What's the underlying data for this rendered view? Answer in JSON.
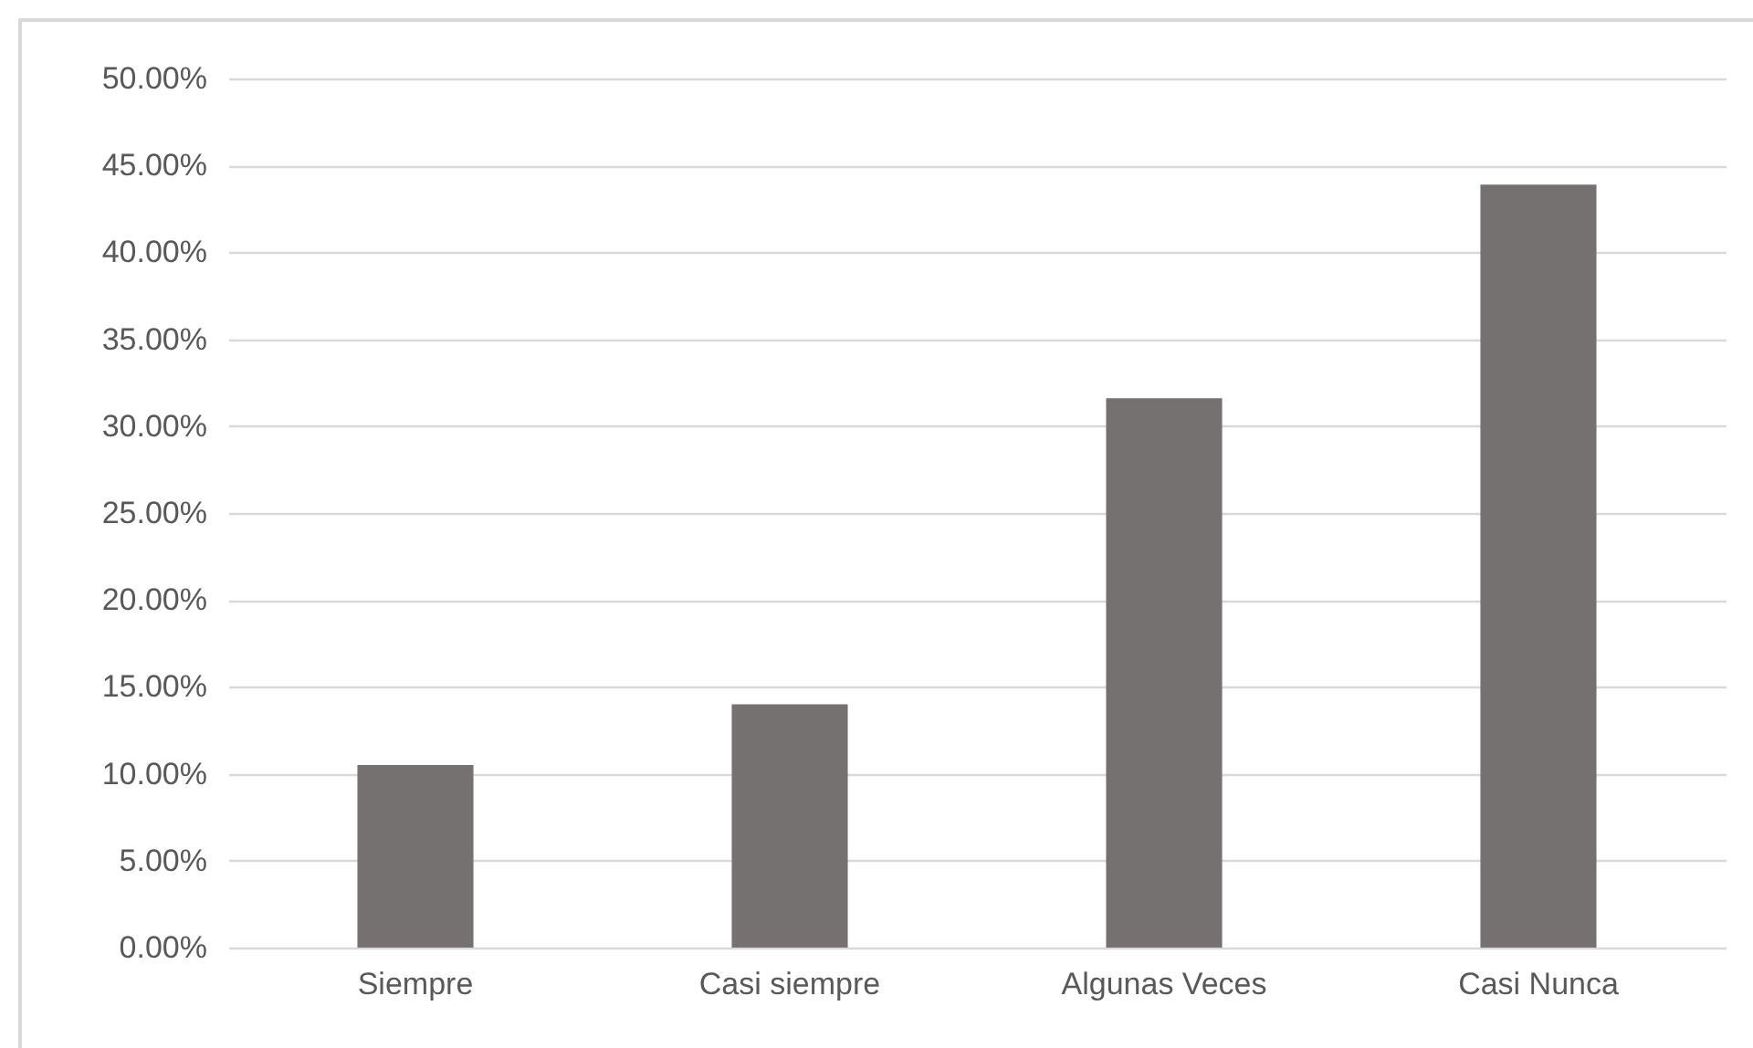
{
  "chart_data": {
    "type": "bar",
    "categories": [
      "Siempre",
      "Casi siempre",
      "Algunas Veces",
      "Casi Nunca"
    ],
    "values": [
      10.5,
      14.0,
      31.6,
      43.9
    ],
    "color": "#767171",
    "ylim": [
      0,
      50
    ],
    "yticks": [
      {
        "value": 0,
        "label": "0.00%"
      },
      {
        "value": 5,
        "label": "5.00%"
      },
      {
        "value": 10,
        "label": "10.00%"
      },
      {
        "value": 15,
        "label": "15.00%"
      },
      {
        "value": 20,
        "label": "20.00%"
      },
      {
        "value": 25,
        "label": "25.00%"
      },
      {
        "value": 30,
        "label": "30.00%"
      },
      {
        "value": 35,
        "label": "35.00%"
      },
      {
        "value": 40,
        "label": "40.00%"
      },
      {
        "value": 45,
        "label": "45.00%"
      },
      {
        "value": 50,
        "label": "50.00%"
      }
    ],
    "grid": "y"
  }
}
